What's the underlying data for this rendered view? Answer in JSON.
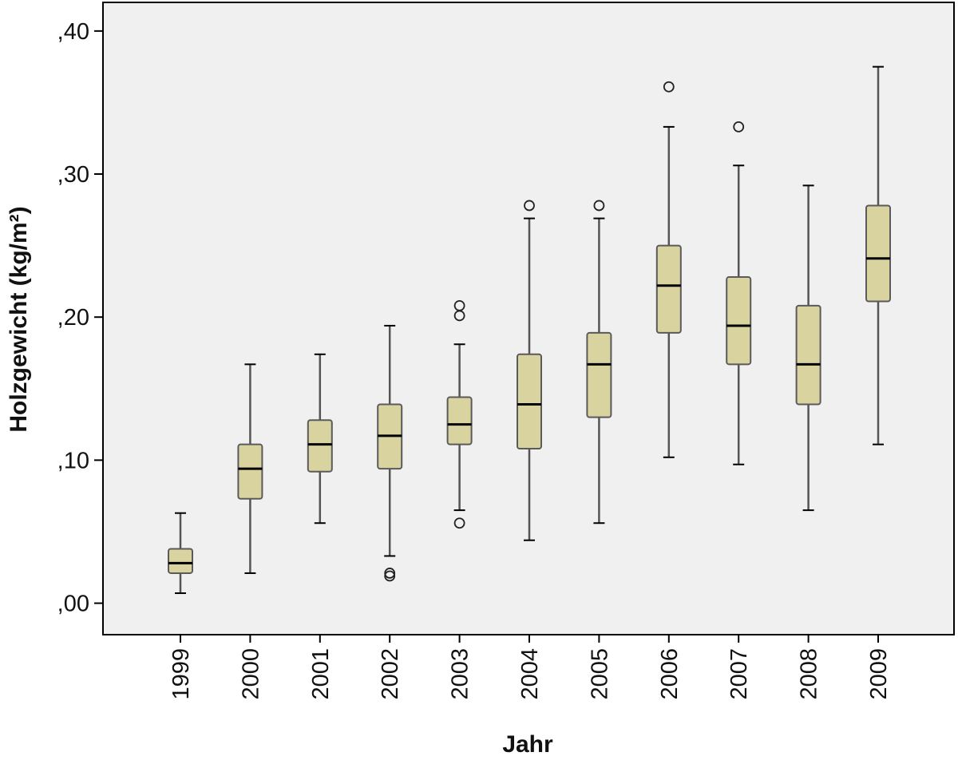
{
  "chart_data": {
    "type": "boxplot",
    "xlabel": "Jahr",
    "ylabel": "Holzgewicht (kg/m²)",
    "ylim": [
      -0.022,
      0.42
    ],
    "yticks": [
      0.0,
      0.1,
      0.2,
      0.3,
      0.4
    ],
    "ytick_labels": [
      ",00",
      ",10",
      ",20",
      ",30",
      ",40"
    ],
    "grid": false,
    "legend": "none",
    "categories": [
      "1999",
      "2000",
      "2001",
      "2002",
      "2003",
      "2004",
      "2005",
      "2006",
      "2007",
      "2008",
      "2009"
    ],
    "boxes": [
      {
        "category": "1999",
        "whisker_low": 0.007,
        "q1": 0.021,
        "median": 0.028,
        "q3": 0.038,
        "whisker_high": 0.063,
        "outliers": []
      },
      {
        "category": "2000",
        "whisker_low": 0.021,
        "q1": 0.073,
        "median": 0.094,
        "q3": 0.111,
        "whisker_high": 0.167,
        "outliers": []
      },
      {
        "category": "2001",
        "whisker_low": 0.056,
        "q1": 0.092,
        "median": 0.111,
        "q3": 0.128,
        "whisker_high": 0.174,
        "outliers": []
      },
      {
        "category": "2002",
        "whisker_low": 0.033,
        "q1": 0.094,
        "median": 0.117,
        "q3": 0.139,
        "whisker_high": 0.194,
        "outliers": [
          0.021,
          0.019
        ]
      },
      {
        "category": "2003",
        "whisker_low": 0.065,
        "q1": 0.111,
        "median": 0.125,
        "q3": 0.144,
        "whisker_high": 0.181,
        "outliers": [
          0.208,
          0.201,
          0.056
        ]
      },
      {
        "category": "2004",
        "whisker_low": 0.044,
        "q1": 0.108,
        "median": 0.139,
        "q3": 0.174,
        "whisker_high": 0.269,
        "outliers": [
          0.278
        ]
      },
      {
        "category": "2005",
        "whisker_low": 0.056,
        "q1": 0.13,
        "median": 0.167,
        "q3": 0.189,
        "whisker_high": 0.269,
        "outliers": [
          0.278
        ]
      },
      {
        "category": "2006",
        "whisker_low": 0.102,
        "q1": 0.189,
        "median": 0.222,
        "q3": 0.25,
        "whisker_high": 0.333,
        "outliers": [
          0.361
        ]
      },
      {
        "category": "2007",
        "whisker_low": 0.097,
        "q1": 0.167,
        "median": 0.194,
        "q3": 0.228,
        "whisker_high": 0.306,
        "outliers": [
          0.333
        ]
      },
      {
        "category": "2008",
        "whisker_low": 0.065,
        "q1": 0.139,
        "median": 0.167,
        "q3": 0.208,
        "whisker_high": 0.292,
        "outliers": []
      },
      {
        "category": "2009",
        "whisker_low": 0.111,
        "q1": 0.211,
        "median": 0.241,
        "q3": 0.278,
        "whisker_high": 0.375,
        "outliers": []
      }
    ],
    "colors": {
      "plot_background": "#f0f0f0",
      "box_fill": "#d9d3a0",
      "box_stroke": "#5a5a5a",
      "median": "#000000",
      "whisker": "#555555",
      "frame": "#000000"
    }
  }
}
